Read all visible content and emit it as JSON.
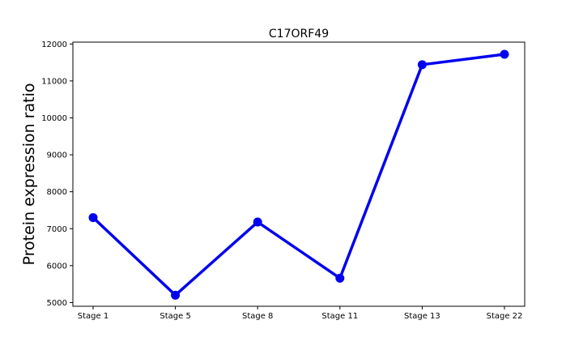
{
  "chart_data": {
    "type": "line",
    "title": "C17ORF49",
    "xlabel": "",
    "ylabel": "Protein expression ratio",
    "categories": [
      "Stage 1",
      "Stage 5",
      "Stage 8",
      "Stage 11",
      "Stage 13",
      "Stage 22"
    ],
    "series": [
      {
        "values": [
          7300,
          5200,
          7180,
          5660,
          11440,
          11720
        ],
        "color": "#0000ee"
      }
    ],
    "ylim": [
      4900,
      12050
    ],
    "yticks": [
      5000,
      6000,
      7000,
      8000,
      9000,
      10000,
      11000,
      12000
    ],
    "ytick_labels": [
      "5000",
      "6000",
      "7000",
      "8000",
      "9000",
      "10000",
      "11000",
      "12000"
    ],
    "grid": false,
    "legend": "none"
  }
}
